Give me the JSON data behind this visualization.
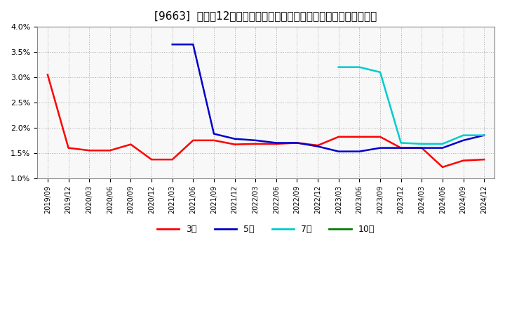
{
  "title": "[9663]  売上高12か月移動合計の対前年同期増減率の標準偏差の推移",
  "xlabels": [
    "2019/09",
    "2019/12",
    "2020/03",
    "2020/06",
    "2020/09",
    "2020/12",
    "2021/03",
    "2021/06",
    "2021/09",
    "2021/12",
    "2022/03",
    "2022/06",
    "2022/09",
    "2022/12",
    "2023/03",
    "2023/06",
    "2023/09",
    "2023/12",
    "2024/03",
    "2024/06",
    "2024/09",
    "2024/12"
  ],
  "series": {
    "3年": {
      "color": "#ff0000",
      "data_x": [
        0,
        1,
        2,
        3,
        4,
        5,
        6,
        7,
        8,
        9,
        10,
        11,
        12,
        13,
        14,
        15,
        16,
        17,
        18,
        19,
        20,
        21
      ],
      "data_y": [
        0.0305,
        0.016,
        0.0155,
        0.0155,
        0.0167,
        0.0137,
        0.0137,
        0.0175,
        0.0175,
        0.0167,
        0.0168,
        0.0168,
        0.017,
        0.0165,
        0.0182,
        0.0182,
        0.0182,
        0.016,
        0.016,
        0.0122,
        0.0135,
        0.0137
      ]
    },
    "5年": {
      "color": "#0000cc",
      "data_x": [
        6,
        7,
        8,
        9,
        10,
        11,
        12,
        13,
        14,
        15,
        16,
        17,
        18,
        19,
        20,
        21
      ],
      "data_y": [
        0.0365,
        0.0365,
        0.0188,
        0.0178,
        0.0175,
        0.017,
        0.017,
        0.0163,
        0.0153,
        0.0153,
        0.016,
        0.016,
        0.016,
        0.016,
        0.0175,
        0.0185
      ]
    },
    "7年": {
      "color": "#00cccc",
      "data_x": [
        14,
        15,
        16,
        17,
        18,
        19,
        20,
        21
      ],
      "data_y": [
        0.032,
        0.032,
        0.031,
        0.017,
        0.0168,
        0.0168,
        0.0185,
        0.0185
      ]
    },
    "10年": {
      "color": "#008000",
      "data_x": [],
      "data_y": []
    }
  },
  "ylim": [
    0.01,
    0.04
  ],
  "yticks": [
    0.01,
    0.015,
    0.02,
    0.025,
    0.03,
    0.035,
    0.04
  ],
  "ytick_labels": [
    "1.0%",
    "1.5%",
    "2.0%",
    "2.5%",
    "3.0%",
    "3.5%",
    "4.0%"
  ],
  "bg_color": "#ffffff",
  "grid_color": "#aaaaaa",
  "legend_labels": [
    "3年",
    "5年",
    "7年",
    "10年"
  ],
  "legend_colors": [
    "#ff0000",
    "#0000cc",
    "#00cccc",
    "#008000"
  ]
}
